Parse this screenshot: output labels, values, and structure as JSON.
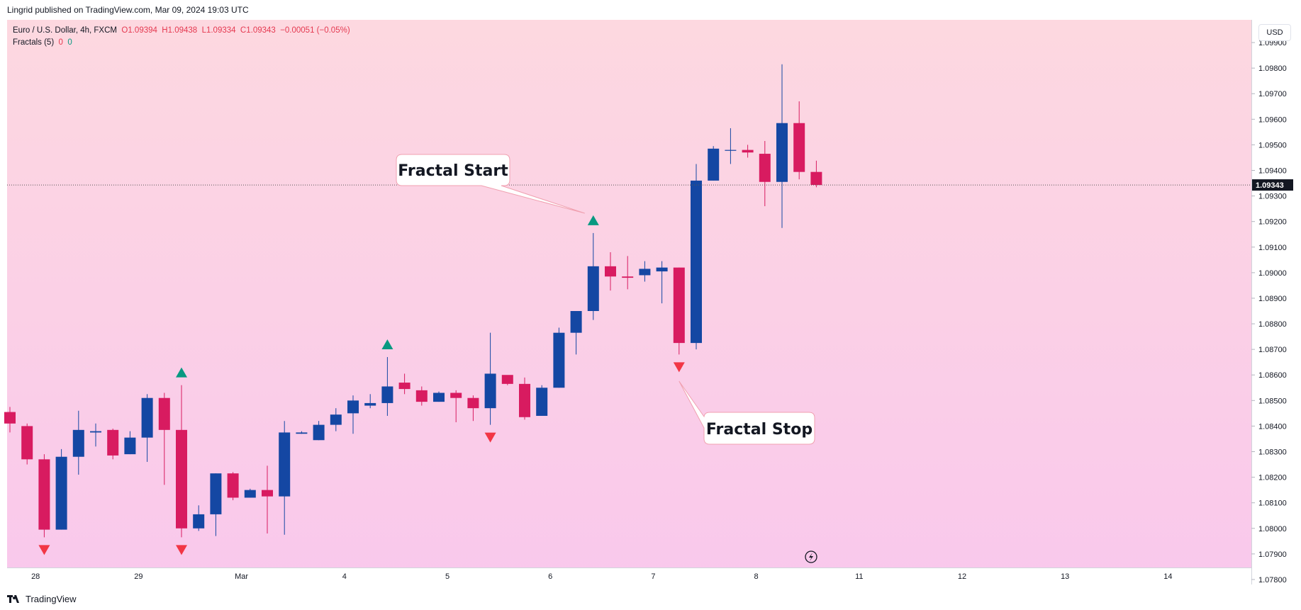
{
  "header": {
    "published": "Lingrid published on TradingView.com, Mar 09, 2024 19:03 UTC"
  },
  "legend": {
    "symbol_line": "Euro / U.S. Dollar, 4h, FXCM",
    "open": "O1.09394",
    "high": "H1.09438",
    "low": "L1.09334",
    "close": "C1.09343",
    "change": "−0.00051 (−0.05%)",
    "indicator": "Fractals (5)",
    "ind_up": "0",
    "ind_down": "0"
  },
  "axis": {
    "currency": "USD",
    "last_price": "1.09343"
  },
  "footer": {
    "brand": "TradingView"
  },
  "colors": {
    "up": "#1447a3",
    "down": "#d81b60",
    "fractal_up": "#089981",
    "fractal_down": "#f23645"
  },
  "chart_data": {
    "type": "candlestick",
    "title": "Euro / U.S. Dollar, 4h, FXCM",
    "y_range": [
      1.0775,
      1.0995
    ],
    "y_ticks": [
      "1.07800",
      "1.07900",
      "1.08000",
      "1.08100",
      "1.08200",
      "1.08300",
      "1.08400",
      "1.08500",
      "1.08600",
      "1.08700",
      "1.08800",
      "1.08900",
      "1.09000",
      "1.09100",
      "1.09200",
      "1.09300",
      "1.09400",
      "1.09500",
      "1.09600",
      "1.09700",
      "1.09800",
      "1.09900"
    ],
    "x_ticks": [
      {
        "label": "28",
        "bar": 1
      },
      {
        "label": "29",
        "bar": 7
      },
      {
        "label": "Mar",
        "bar": 13
      },
      {
        "label": "4",
        "bar": 19
      },
      {
        "label": "5",
        "bar": 25
      },
      {
        "label": "6",
        "bar": 31
      },
      {
        "label": "7",
        "bar": 37
      },
      {
        "label": "8",
        "bar": 43
      },
      {
        "label": "11",
        "bar": 49
      },
      {
        "label": "12",
        "bar": 55
      },
      {
        "label": "13",
        "bar": 61
      },
      {
        "label": "14",
        "bar": 67
      }
    ],
    "candles": [
      [
        1.08455,
        1.08475,
        1.08375,
        1.0841
      ],
      [
        1.084,
        1.0841,
        1.0825,
        1.0827
      ],
      [
        1.0827,
        1.0829,
        1.07965,
        1.07995
      ],
      [
        1.07995,
        1.0831,
        1.07995,
        1.0828
      ],
      [
        1.0828,
        1.0846,
        1.0821,
        1.08385
      ],
      [
        1.08375,
        1.0841,
        1.0832,
        1.0838
      ],
      [
        1.08385,
        1.0839,
        1.0827,
        1.08285
      ],
      [
        1.0829,
        1.0838,
        1.0829,
        1.08355
      ],
      [
        1.08355,
        1.08525,
        1.0826,
        1.0851
      ],
      [
        1.0851,
        1.0853,
        1.0817,
        1.08385
      ],
      [
        1.08385,
        1.0856,
        1.07965,
        1.08
      ],
      [
        1.08,
        1.0809,
        1.0799,
        1.08055
      ],
      [
        1.08055,
        1.08215,
        1.0797,
        1.08215
      ],
      [
        1.08215,
        1.0822,
        1.0811,
        1.0812
      ],
      [
        1.0812,
        1.08155,
        1.0812,
        1.0815
      ],
      [
        1.0815,
        1.08245,
        1.0798,
        1.08125
      ],
      [
        1.08125,
        1.0842,
        1.07975,
        1.08375
      ],
      [
        1.0837,
        1.0838,
        1.0837,
        1.08375
      ],
      [
        1.08345,
        1.0842,
        1.08345,
        1.08405
      ],
      [
        1.08405,
        1.0847,
        1.0838,
        1.08445
      ],
      [
        1.0845,
        1.0852,
        1.0837,
        1.085
      ],
      [
        1.0848,
        1.08525,
        1.0847,
        1.0849
      ],
      [
        1.0849,
        1.0867,
        1.0844,
        1.08555
      ],
      [
        1.0857,
        1.08605,
        1.08525,
        1.08545
      ],
      [
        1.0854,
        1.08555,
        1.0848,
        1.08495
      ],
      [
        1.08495,
        1.08535,
        1.08495,
        1.0853
      ],
      [
        1.0853,
        1.0854,
        1.08415,
        1.0851
      ],
      [
        1.0851,
        1.0852,
        1.0842,
        1.0847
      ],
      [
        1.0847,
        1.08765,
        1.08405,
        1.08605
      ],
      [
        1.086,
        1.08595,
        1.0856,
        1.08565
      ],
      [
        1.08565,
        1.0859,
        1.08425,
        1.08435
      ],
      [
        1.0844,
        1.0856,
        1.0844,
        1.0855
      ],
      [
        1.0855,
        1.08785,
        1.0855,
        1.08765
      ],
      [
        1.08765,
        1.0885,
        1.0868,
        1.0885
      ],
      [
        1.0885,
        1.09155,
        1.08815,
        1.09025
      ],
      [
        1.09025,
        1.0908,
        1.0893,
        1.08985
      ],
      [
        1.08985,
        1.09065,
        1.08935,
        1.0898
      ],
      [
        1.0899,
        1.09045,
        1.08965,
        1.09015
      ],
      [
        1.09005,
        1.09045,
        1.0888,
        1.0902
      ],
      [
        1.0902,
        1.0902,
        1.0868,
        1.08725
      ],
      [
        1.08725,
        1.09425,
        1.087,
        1.0936
      ],
      [
        1.0936,
        1.09495,
        1.0936,
        1.09485
      ],
      [
        1.0948,
        1.09565,
        1.09425,
        1.0948
      ],
      [
        1.0948,
        1.095,
        1.0945,
        1.0947
      ],
      [
        1.09465,
        1.09515,
        1.0926,
        1.09355
      ],
      [
        1.09355,
        1.09815,
        1.09175,
        1.09585
      ],
      [
        1.09585,
        1.0967,
        1.09365,
        1.09394
      ],
      [
        1.09394,
        1.09438,
        1.09334,
        1.09343
      ]
    ],
    "fractals_up": [
      10,
      22,
      34
    ],
    "fractals_down": [
      2,
      10,
      28,
      39
    ],
    "annotations": [
      {
        "text": "Fractal Start",
        "target_bar": 34
      },
      {
        "text": "Fractal Stop",
        "target_bar": 39
      }
    ]
  }
}
